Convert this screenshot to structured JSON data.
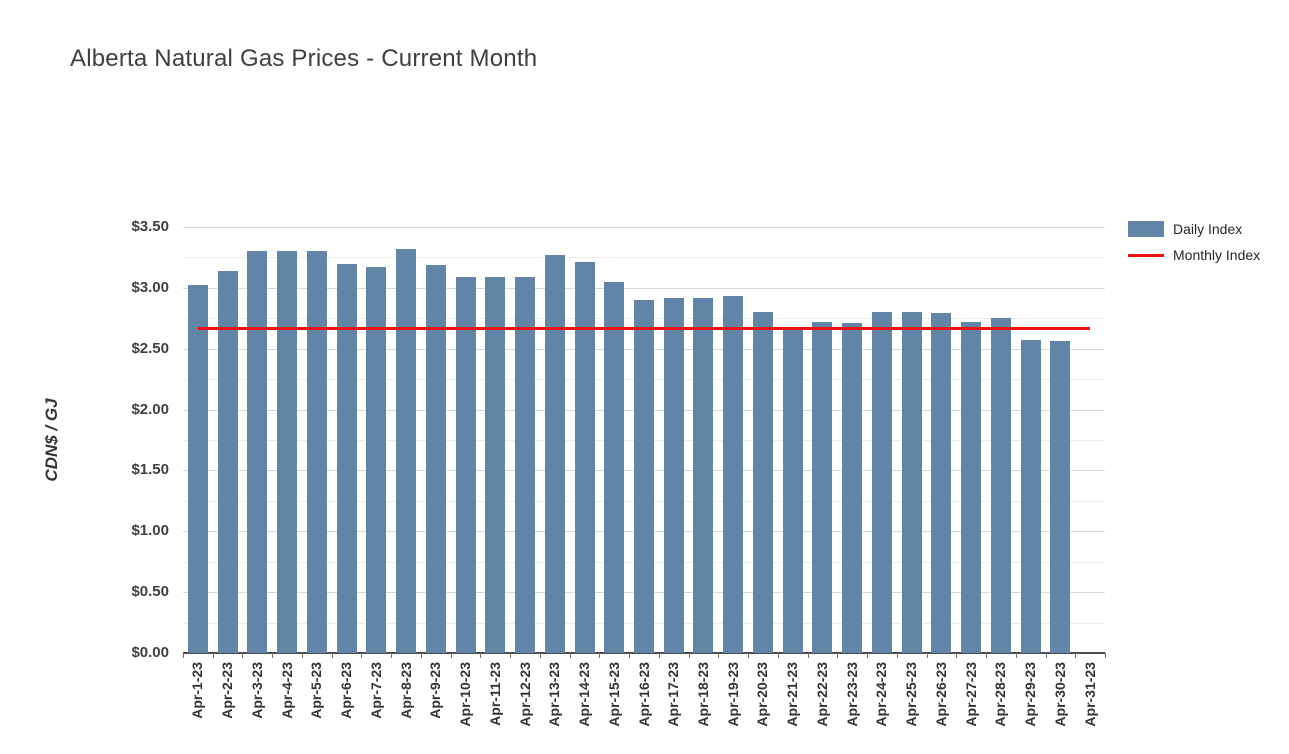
{
  "header": {
    "title": "Alberta Natural Gas Prices - Current Month"
  },
  "chart_data": {
    "type": "bar",
    "title": "Alberta Natural Gas Prices - Current Month",
    "xlabel": "",
    "ylabel": "CDN$ / GJ",
    "ylim": [
      0,
      3.5
    ],
    "y_major_step": 0.5,
    "y_minor_step": 0.25,
    "y_tick_labels": [
      "$0.00",
      "$0.50",
      "$1.00",
      "$1.50",
      "$2.00",
      "$2.50",
      "$3.00",
      "$3.50"
    ],
    "grid": true,
    "legend_position": "top-right",
    "categories": [
      "Apr-1-23",
      "Apr-2-23",
      "Apr-3-23",
      "Apr-4-23",
      "Apr-5-23",
      "Apr-6-23",
      "Apr-7-23",
      "Apr-8-23",
      "Apr-9-23",
      "Apr-10-23",
      "Apr-11-23",
      "Apr-12-23",
      "Apr-13-23",
      "Apr-14-23",
      "Apr-15-23",
      "Apr-16-23",
      "Apr-17-23",
      "Apr-18-23",
      "Apr-19-23",
      "Apr-20-23",
      "Apr-21-23",
      "Apr-22-23",
      "Apr-23-23",
      "Apr-24-23",
      "Apr-25-23",
      "Apr-26-23",
      "Apr-27-23",
      "Apr-28-23",
      "Apr-29-23",
      "Apr-30-23",
      "Apr-31-23"
    ],
    "series": [
      {
        "name": "Daily Index",
        "type": "bar",
        "color": "#6284A7",
        "values": [
          3.02,
          3.14,
          3.3,
          3.3,
          3.3,
          3.2,
          3.17,
          3.32,
          3.19,
          3.09,
          3.09,
          3.09,
          3.27,
          3.21,
          3.05,
          2.9,
          2.92,
          2.92,
          2.93,
          2.8,
          2.66,
          2.72,
          2.71,
          2.8,
          2.8,
          2.79,
          2.72,
          2.75,
          2.57,
          2.56,
          null
        ]
      },
      {
        "name": "Monthly Index",
        "type": "line",
        "color": "#EE1111",
        "value": 2.67
      }
    ]
  },
  "legend": {
    "items": [
      {
        "label": "Daily Index",
        "swatch": "rect",
        "color": "#6284A7"
      },
      {
        "label": "Monthly Index",
        "swatch": "line",
        "color": "#EE1111"
      }
    ]
  }
}
